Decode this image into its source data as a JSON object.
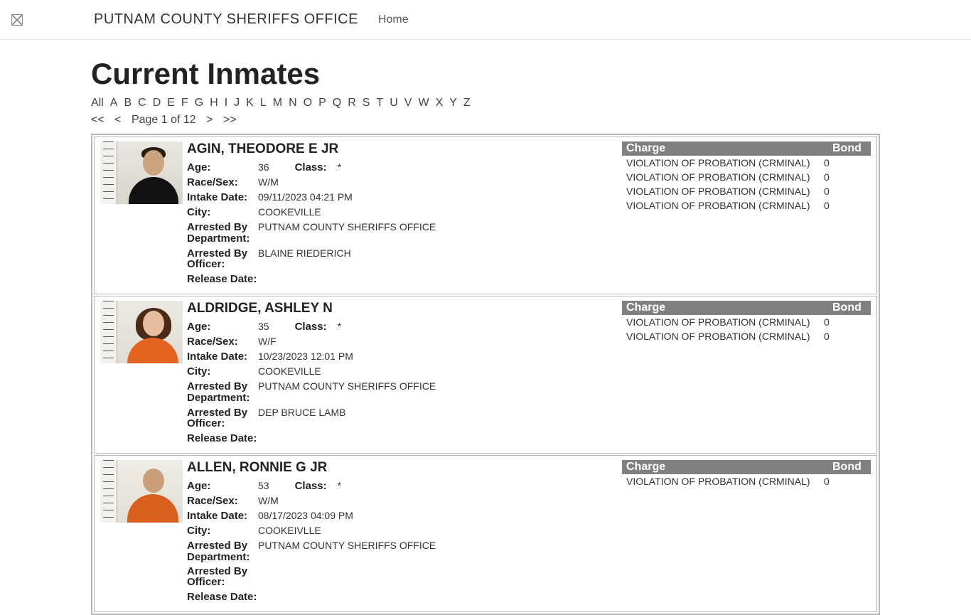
{
  "header": {
    "brand": "PUTNAM COUNTY SHERIFFS OFFICE",
    "home": "Home"
  },
  "page_title": "Current Inmates",
  "alpha_filters": [
    "All",
    "A",
    "B",
    "C",
    "D",
    "E",
    "F",
    "G",
    "H",
    "I",
    "J",
    "K",
    "L",
    "M",
    "N",
    "O",
    "P",
    "Q",
    "R",
    "S",
    "T",
    "U",
    "V",
    "W",
    "X",
    "Y",
    "Z"
  ],
  "pager": {
    "first": "<<",
    "prev": "<",
    "label": "Page 1 of 12",
    "next": ">",
    "last": ">>"
  },
  "labels": {
    "age": "Age:",
    "class": "Class:",
    "race_sex": "Race/Sex:",
    "intake": "Intake Date:",
    "city": "City:",
    "dept": "Arrested By Department:",
    "officer": "Arrested By Officer:",
    "release": "Release Date:",
    "charge": "Charge",
    "bond": "Bond"
  },
  "inmates": [
    {
      "name": "AGIN, THEODORE E JR",
      "age": "36",
      "class": "*",
      "race_sex": "W/M",
      "intake": "09/11/2023 04:21 PM",
      "city": "COOKEVILLE",
      "dept": "PUTNAM COUNTY SHERIFFS OFFICE",
      "officer": "BLAINE RIEDERICH",
      "release": "",
      "mug": "a",
      "charges": [
        {
          "desc": "VIOLATION OF PROBATION (CRMINAL)",
          "bond": "0"
        },
        {
          "desc": "VIOLATION OF PROBATION (CRMINAL)",
          "bond": "0"
        },
        {
          "desc": "VIOLATION OF PROBATION (CRMINAL)",
          "bond": "0"
        },
        {
          "desc": "VIOLATION OF PROBATION (CRMINAL)",
          "bond": "0"
        }
      ]
    },
    {
      "name": "ALDRIDGE, ASHLEY N",
      "age": "35",
      "class": "*",
      "race_sex": "W/F",
      "intake": "10/23/2023 12:01 PM",
      "city": "COOKEVILLE",
      "dept": "PUTNAM COUNTY SHERIFFS OFFICE",
      "officer": "DEP BRUCE LAMB",
      "release": "",
      "mug": "b",
      "charges": [
        {
          "desc": "VIOLATION OF PROBATION (CRMINAL)",
          "bond": "0"
        },
        {
          "desc": "VIOLATION OF PROBATION (CRMINAL)",
          "bond": "0"
        }
      ]
    },
    {
      "name": "ALLEN, RONNIE G JR",
      "age": "53",
      "class": "*",
      "race_sex": "W/M",
      "intake": "08/17/2023 04:09 PM",
      "city": "COOKEIVLLE",
      "dept": "PUTNAM COUNTY SHERIFFS OFFICE",
      "officer": "",
      "release": "",
      "mug": "c",
      "charges": [
        {
          "desc": "VIOLATION OF PROBATION (CRMINAL)",
          "bond": "0"
        }
      ]
    }
  ]
}
